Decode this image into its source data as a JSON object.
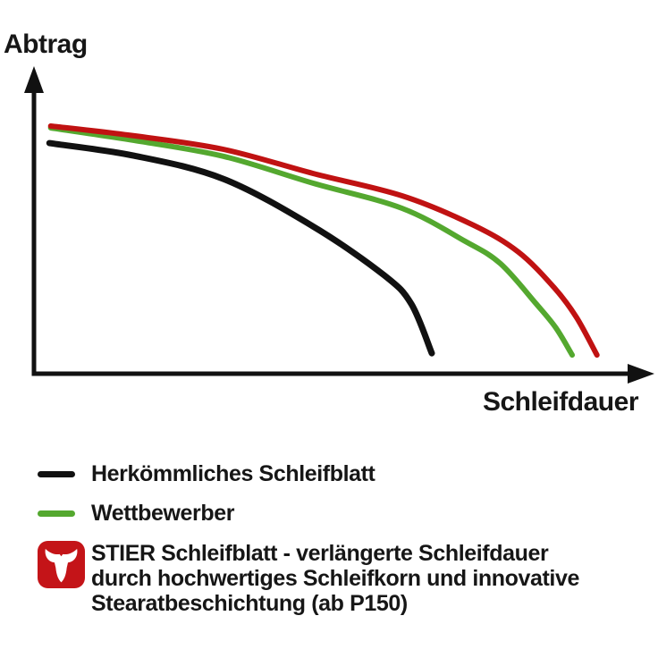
{
  "chart_data": {
    "type": "line",
    "title": "",
    "xlabel": "Schleifdauer",
    "ylabel": "Abtrag",
    "x_range_units": [
      0,
      100
    ],
    "y_range_units": [
      0,
      100
    ],
    "grid": false,
    "axis_color": "#111111",
    "legend_position": "below-left",
    "series": [
      {
        "id": "herkoemmliches-schleifblatt",
        "name": "Herkömmliches Schleifblatt",
        "color": "#111111",
        "points": [
          [
            2.5,
            75.4
          ],
          [
            16.2,
            71.3
          ],
          [
            30.6,
            63.7
          ],
          [
            45.1,
            48.2
          ],
          [
            56.6,
            32.2
          ],
          [
            61.0,
            22.8
          ],
          [
            64.3,
            6.7
          ]
        ]
      },
      {
        "id": "wettbewerber",
        "name": "Wettbewerber",
        "color": "#54a82f",
        "points": [
          [
            2.7,
            80.4
          ],
          [
            16.2,
            76.3
          ],
          [
            30.6,
            71.1
          ],
          [
            45.1,
            62.3
          ],
          [
            59.5,
            54.1
          ],
          [
            69.7,
            43.3
          ],
          [
            75.4,
            36.0
          ],
          [
            81.2,
            22.8
          ],
          [
            84.4,
            14.9
          ],
          [
            87.0,
            6.1
          ]
        ]
      },
      {
        "id": "stier-schleifblatt",
        "name": "STIER Schleifblatt",
        "color": "#c01212",
        "points": [
          [
            2.7,
            81.0
          ],
          [
            16.2,
            77.8
          ],
          [
            30.6,
            73.4
          ],
          [
            45.1,
            65.5
          ],
          [
            59.5,
            58.2
          ],
          [
            71.1,
            48.5
          ],
          [
            78.3,
            39.8
          ],
          [
            84.1,
            28.1
          ],
          [
            87.7,
            18.4
          ],
          [
            91.0,
            6.1
          ]
        ]
      }
    ]
  },
  "legend": {
    "items": [
      {
        "swatch": "line",
        "swatch_color": "#111111",
        "label": "Herkömmliches Schleifblatt"
      },
      {
        "swatch": "line",
        "swatch_color": "#54a82f",
        "label": "Wettbewerber"
      },
      {
        "swatch": "stier-logo",
        "logo_color": "#c41418",
        "bull_color": "#ffffff",
        "lines": [
          "STIER Schleifblatt - verlängerte Schleifdauer",
          "durch hochwertiges Schleifkorn und innovative",
          "Stearatbeschichtung (ab P150)"
        ]
      }
    ]
  }
}
